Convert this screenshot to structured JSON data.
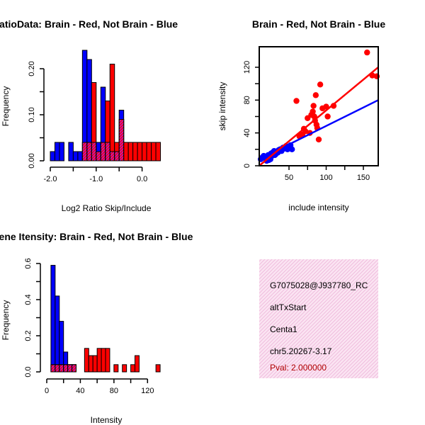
{
  "colors": {
    "brain": "#ff0000",
    "not_brain": "#0000ff",
    "overlap": "#a020f0",
    "info_bg": "#f9d9ee",
    "pval": "#b00000"
  },
  "chart_data": [
    {
      "id": "ratio",
      "type": "bar",
      "title": "RatioData: Brain - Red, Not Brain - Blue",
      "xlabel": "Log2 Ratio Skip/Include",
      "ylabel": "Frequency",
      "xlim": [
        -2.0,
        0.5
      ],
      "ylim": [
        0,
        0.24
      ],
      "xticks": [
        -2.0,
        -1.0,
        0.0
      ],
      "xtick_labels": [
        "-2.0",
        "-1.0",
        "0.0"
      ],
      "yticks": [
        0.0,
        0.1,
        0.2
      ],
      "ytick_labels": [
        "0.00",
        "0.10",
        "0.20"
      ],
      "bin_width": 0.1,
      "series": [
        {
          "name": "Not Brain",
          "color": "blue",
          "bins": [
            [
              -2.0,
              0.02
            ],
            [
              -1.9,
              0.04
            ],
            [
              -1.8,
              0.04
            ],
            [
              -1.6,
              0.04
            ],
            [
              -1.5,
              0.02
            ],
            [
              -1.4,
              0.02
            ],
            [
              -1.3,
              0.24
            ],
            [
              -1.2,
              0.22
            ],
            [
              -1.1,
              0.04
            ],
            [
              -1.0,
              0.04
            ],
            [
              -0.9,
              0.16
            ],
            [
              -0.8,
              0.04
            ],
            [
              -0.7,
              0.02
            ],
            [
              -0.6,
              0.02
            ],
            [
              -0.5,
              0.11
            ]
          ]
        },
        {
          "name": "Brain",
          "color": "red",
          "bins": [
            [
              -1.3,
              0.04
            ],
            [
              -1.2,
              0.04
            ],
            [
              -1.1,
              0.17
            ],
            [
              -1.0,
              0.02
            ],
            [
              -0.9,
              0.04
            ],
            [
              -0.8,
              0.13
            ],
            [
              -0.7,
              0.21
            ],
            [
              -0.6,
              0.04
            ],
            [
              -0.5,
              0.09
            ],
            [
              -0.4,
              0.04
            ],
            [
              -0.3,
              0.04
            ],
            [
              -0.2,
              0.04
            ],
            [
              -0.1,
              0.04
            ],
            [
              0.0,
              0.04
            ],
            [
              0.1,
              0.04
            ],
            [
              0.2,
              0.04
            ],
            [
              0.3,
              0.04
            ]
          ]
        }
      ]
    },
    {
      "id": "scatter",
      "type": "scatter",
      "title": "Brain - Red, Not Brain - Blue",
      "xlabel": "include intensity",
      "ylabel": "skip intensity",
      "xlim": [
        10,
        170
      ],
      "ylim": [
        0,
        145
      ],
      "xticks": [
        50,
        100,
        150
      ],
      "xtick_labels": [
        "50",
        "100",
        "150"
      ],
      "yticks": [
        0,
        40,
        80,
        120
      ],
      "ytick_labels": [
        "0",
        "40",
        "80",
        "120"
      ],
      "series": [
        {
          "name": "Not Brain",
          "color": "blue",
          "x": [
            12,
            14,
            16,
            18,
            20,
            22,
            24,
            25,
            26,
            28,
            30,
            32,
            34,
            36,
            38,
            40,
            42,
            44,
            46,
            48,
            50,
            52,
            54,
            20,
            23,
            27,
            31,
            35
          ],
          "y": [
            8,
            10,
            12,
            9,
            11,
            13,
            10,
            8,
            15,
            16,
            18,
            14,
            17,
            19,
            20,
            18,
            22,
            21,
            24,
            20,
            22,
            25,
            20,
            6,
            7,
            12,
            13,
            16
          ],
          "fit": [
            [
              10,
              8
            ],
            [
              170,
              80
            ]
          ]
        },
        {
          "name": "Brain",
          "color": "red",
          "x": [
            155,
            162,
            168,
            92,
            110,
            100,
            102,
            86,
            83,
            82,
            85,
            87,
            80,
            84,
            88,
            70,
            78,
            60,
            68,
            72,
            90,
            95,
            64,
            75
          ],
          "y": [
            138,
            110,
            109,
            99,
            73,
            72,
            60,
            86,
            73,
            66,
            55,
            50,
            62,
            60,
            46,
            45,
            40,
            79,
            38,
            42,
            32,
            70,
            36,
            58
          ],
          "fit": [
            [
              10,
              0
            ],
            [
              170,
              120
            ]
          ]
        }
      ]
    },
    {
      "id": "intensity",
      "type": "bar",
      "title": "Gene Itensity: Brain - Red, Not Brain - Blue",
      "xlabel": "Intensity",
      "ylabel": "Frequency",
      "xlim": [
        0,
        140
      ],
      "ylim": [
        0,
        0.6
      ],
      "xticks": [
        0,
        40,
        80,
        120
      ],
      "xtick_labels": [
        "0",
        "40",
        "80",
        "120"
      ],
      "yticks": [
        0.0,
        0.2,
        0.4,
        0.6
      ],
      "ytick_labels": [
        "0.0",
        "0.2",
        "0.4",
        "0.6"
      ],
      "bin_width": 5,
      "series": [
        {
          "name": "Not Brain",
          "color": "blue",
          "bins": [
            [
              5,
              0.59
            ],
            [
              10,
              0.42
            ],
            [
              15,
              0.28
            ],
            [
              20,
              0.11
            ],
            [
              25,
              0.04
            ],
            [
              30,
              0.04
            ]
          ]
        },
        {
          "name": "Brain",
          "color": "red",
          "bins": [
            [
              5,
              0.04
            ],
            [
              10,
              0.04
            ],
            [
              15,
              0.04
            ],
            [
              20,
              0.04
            ],
            [
              25,
              0.04
            ],
            [
              30,
              0.04
            ],
            [
              45,
              0.13
            ],
            [
              50,
              0.09
            ],
            [
              55,
              0.09
            ],
            [
              60,
              0.13
            ],
            [
              65,
              0.13
            ],
            [
              70,
              0.13
            ],
            [
              80,
              0.04
            ],
            [
              90,
              0.04
            ],
            [
              100,
              0.04
            ],
            [
              105,
              0.09
            ],
            [
              130,
              0.04
            ]
          ]
        }
      ]
    }
  ],
  "info": {
    "probe": "G7075028@J937780_RC",
    "event": "altTxStart",
    "gene": "Centa1",
    "location": "chr5.20267-3.17",
    "pval": "Pval: 2.000000"
  }
}
